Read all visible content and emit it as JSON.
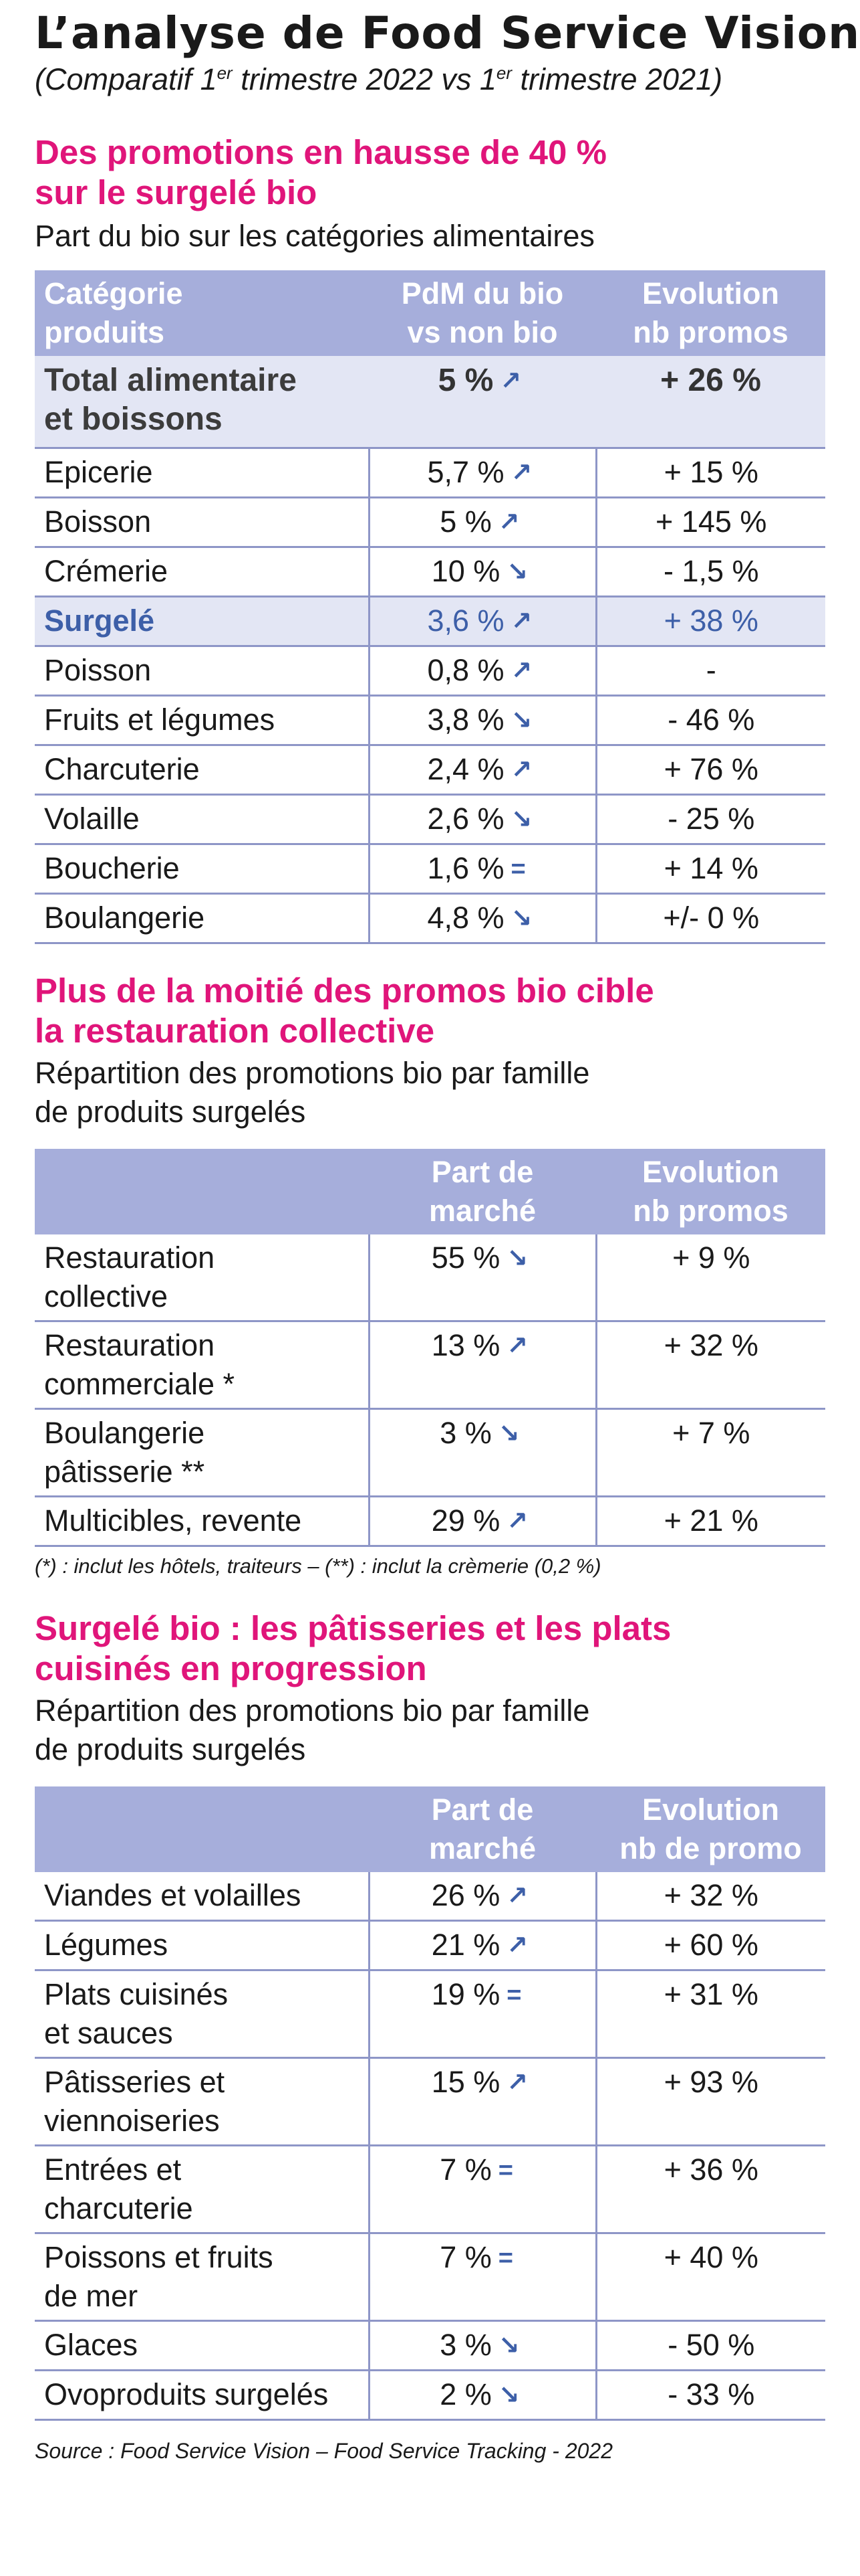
{
  "header": {
    "title": "L’analyse de Food Service Vision",
    "subtitle_pre": "(Comparatif 1",
    "sup1": "er",
    "subtitle_mid": " trimestre 2022 vs 1",
    "sup2": "er",
    "subtitle_post": " trimestre 2021)"
  },
  "indicator_icons": {
    "up": "arrow-up-right-icon",
    "down": "arrow-down-right-icon",
    "equal": "equal-icon"
  },
  "accent_colors": {
    "section_title": "#e0157a",
    "header_fill": "#a6aedb",
    "row_highlight": "#e3e6f4",
    "highlight_text": "#3d5fa8"
  },
  "section1": {
    "title_line1": "Des promotions en hausse de 40 %",
    "title_line2": "sur le surgelé bio",
    "subtitle": "Part du bio sur les catégories alimentaires",
    "headers": {
      "col1_l1": "Catégorie",
      "col1_l2": "produits",
      "col2_l1": "PdM du bio",
      "col2_l2": "vs non bio",
      "col3_l1": "Evolution",
      "col3_l2": "nb promos"
    },
    "total": {
      "label_l1": "Total alimentaire",
      "label_l2": "et boissons",
      "share": "5 %",
      "trend": "up",
      "evolution": "+ 26 %"
    },
    "rows": [
      {
        "label": "Epicerie",
        "share": "5,7 %",
        "trend": "up",
        "evolution": "+ 15 %"
      },
      {
        "label": "Boisson",
        "share": "5 %",
        "trend": "up",
        "evolution": "+ 145 %"
      },
      {
        "label": "Crémerie",
        "share": "10 %",
        "trend": "down",
        "evolution": "- 1,5 %"
      },
      {
        "label": "Surgelé",
        "share": "3,6 %",
        "trend": "up",
        "evolution": "+ 38 %"
      },
      {
        "label": "Poisson",
        "share": "0,8 %",
        "trend": "up",
        "evolution": "-"
      },
      {
        "label": "Fruits et légumes",
        "share": "3,8 %",
        "trend": "down",
        "evolution": "- 46 %"
      },
      {
        "label": "Charcuterie",
        "share": "2,4 %",
        "trend": "up",
        "evolution": "+ 76 %"
      },
      {
        "label": "Volaille",
        "share": "2,6 %",
        "trend": "down",
        "evolution": "- 25 %"
      },
      {
        "label": "Boucherie",
        "share": "1,6 %",
        "trend": "equal",
        "evolution": "+ 14 %"
      },
      {
        "label": "Boulangerie",
        "share": "4,8 %",
        "trend": "down",
        "evolution": "+/- 0 %"
      }
    ]
  },
  "section2": {
    "title_line1": "Plus de la moitié des promos bio cible",
    "title_line2": "la restauration collective",
    "subtitle_l1": "Répartition des promotions bio par famille",
    "subtitle_l2": "de produits surgelés",
    "headers": {
      "col2_l1": "Part de",
      "col2_l2": "marché",
      "col3_l1": "Evolution",
      "col3_l2": "nb promos"
    },
    "rows": [
      {
        "label_l1": "Restauration",
        "label_l2": "collective",
        "share": "55 %",
        "trend": "down",
        "evolution": "+ 9 %"
      },
      {
        "label_l1": "Restauration",
        "label_l2": "commerciale *",
        "share": "13 %",
        "trend": "up",
        "evolution": "+ 32 %"
      },
      {
        "label_l1": "Boulangerie",
        "label_l2": "pâtisserie **",
        "share": "3 %",
        "trend": "down",
        "evolution": "+ 7 %"
      },
      {
        "label_l1": "Multicibles, revente",
        "label_l2": "",
        "share": "29 %",
        "trend": "up",
        "evolution": "+ 21 %"
      }
    ],
    "footnote": "(*) : inclut les hôtels, traiteurs – (**) : inclut la crèmerie (0,2 %)"
  },
  "section3": {
    "title_line1": "Surgelé bio : les pâtisseries et les plats",
    "title_line2": "cuisinés en progression",
    "subtitle_l1": "Répartition des promotions bio par famille",
    "subtitle_l2": "de produits surgelés",
    "headers": {
      "col2_l1": "Part de",
      "col2_l2": "marché",
      "col3_l1": "Evolution",
      "col3_l2": "nb de promo"
    },
    "rows": [
      {
        "label_l1": "Viandes et volailles",
        "label_l2": "",
        "share": "26 %",
        "trend": "up",
        "evolution": "+ 32 %"
      },
      {
        "label_l1": "Légumes",
        "label_l2": "",
        "share": "21 %",
        "trend": "up",
        "evolution": "+ 60 %"
      },
      {
        "label_l1": "Plats cuisinés",
        "label_l2": "et sauces",
        "share": "19 %",
        "trend": "equal",
        "evolution": "+ 31 %"
      },
      {
        "label_l1": "Pâtisseries et",
        "label_l2": "viennoiseries",
        "share": "15 %",
        "trend": "up",
        "evolution": "+ 93 %"
      },
      {
        "label_l1": "Entrées et",
        "label_l2": "charcuterie",
        "share": "7 %",
        "trend": "equal",
        "evolution": "+ 36 %"
      },
      {
        "label_l1": "Poissons et fruits",
        "label_l2": "de mer",
        "share": "7 %",
        "trend": "equal",
        "evolution": "+ 40 %"
      },
      {
        "label_l1": "Glaces",
        "label_l2": "",
        "share": "3 %",
        "trend": "down",
        "evolution": "- 50 %"
      },
      {
        "label_l1": "Ovoproduits surgelés",
        "label_l2": "",
        "share": "2 %",
        "trend": "down",
        "evolution": "- 33 %"
      }
    ]
  },
  "source": "Source : Food Service Vision – Food Service Tracking - 2022"
}
